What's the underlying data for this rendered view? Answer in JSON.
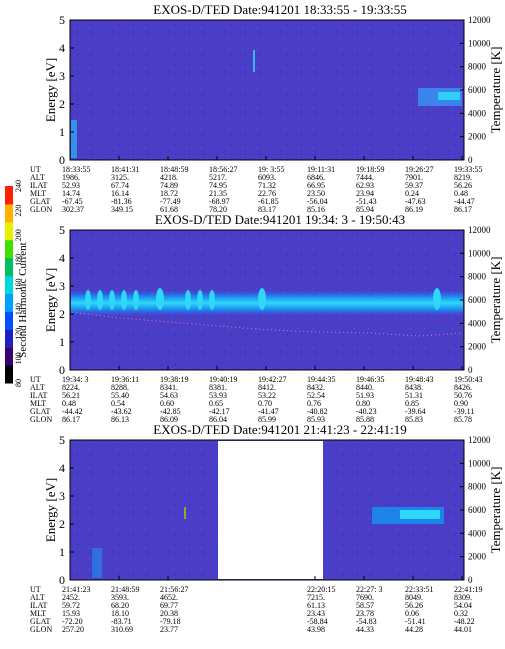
{
  "chart_data": [
    {
      "type": "heatmap",
      "title": "EXOS-D/TED   Date:941201  18:33:55 - 19:33:55",
      "ylabel": "Energy [eV]",
      "y2label": "Temperature [K]",
      "ylim": [
        0,
        5
      ],
      "y2lim": [
        0,
        12000
      ],
      "yticks": [
        "0",
        "1",
        "2",
        "3",
        "4",
        "5"
      ],
      "y2ticks": [
        "0",
        "2000",
        "4000",
        "6000",
        "8000",
        "10000",
        "12000"
      ],
      "gap": null,
      "orbit": {
        "labels": [
          "UT",
          "ALT",
          "ILAT",
          "MLT",
          "GLAT",
          "GLON"
        ],
        "columns": [
          [
            "18:33:55",
            "1986.",
            "52.93",
            "14.74",
            "-67.45",
            "302.37"
          ],
          [
            "18:41:31",
            "3125.",
            "67.74",
            "16.14",
            "-81.36",
            "349.15"
          ],
          [
            "18:48:59",
            "4218.",
            "74.89",
            "18.72",
            "-77.49",
            "61.68"
          ],
          [
            "18:56:27",
            "5217.",
            "74.95",
            "21.35",
            "-68.97",
            "78.20"
          ],
          [
            "19: 3:55",
            "6093.",
            "71.32",
            "22.76",
            "-61.85",
            "83.17"
          ],
          [
            "19:11:31",
            "6846.",
            "66.95",
            "23.50",
            "-56.04",
            "85.16"
          ],
          [
            "19:18:59",
            "7444.",
            "62.93",
            "23.94",
            "-51.43",
            "85.94"
          ],
          [
            "19:26:27",
            "7901.",
            "59.37",
            "0.24",
            "-47.63",
            "86.19"
          ],
          [
            "19:33:55",
            "8219.",
            "56.26",
            "0.48",
            "-44.47",
            "86.17"
          ]
        ]
      }
    },
    {
      "type": "heatmap",
      "title": "EXOS-D/TED   Date:941201  19:34: 3 - 19:50:43",
      "ylabel": "Energy [eV]",
      "y2label": "Temperature [K]",
      "ylim": [
        0,
        5
      ],
      "y2lim": [
        0,
        12000
      ],
      "yticks": [
        "0",
        "1",
        "2",
        "3",
        "4",
        "5"
      ],
      "y2ticks": [
        "0",
        "2000",
        "4000",
        "6000",
        "8000",
        "10000",
        "12000"
      ],
      "gap": null,
      "orbit": {
        "labels": [
          "UT",
          "ALT",
          "ILAT",
          "MLT",
          "GLAT",
          "GLON"
        ],
        "columns": [
          [
            "19:34: 3",
            "8224.",
            "56.21",
            "0.48",
            "-44.42",
            "86.17"
          ],
          [
            "19:36:11",
            "8288.",
            "55.40",
            "0.54",
            "-43.62",
            "86.13"
          ],
          [
            "19:38:19",
            "8341.",
            "54.63",
            "0.60",
            "-42.85",
            "86.09"
          ],
          [
            "19:40:19",
            "8381.",
            "53.93",
            "0.65",
            "-42.17",
            "86.04"
          ],
          [
            "19:42:27",
            "8412.",
            "53.22",
            "0.70",
            "-41.47",
            "85.99"
          ],
          [
            "19:44:35",
            "8432.",
            "52.54",
            "0.76",
            "-40.82",
            "85.93"
          ],
          [
            "19:46:35",
            "8440.",
            "51.93",
            "0.80",
            "-40.23",
            "85.88"
          ],
          [
            "19:48:43",
            "8438.",
            "51.31",
            "0.85",
            "-39.64",
            "85.83"
          ],
          [
            "19:50:43",
            "8426.",
            "50.76",
            "0.90",
            "-39.11",
            "85.78"
          ]
        ]
      }
    },
    {
      "type": "heatmap",
      "title": "EXOS-D/TED   Date:941201  21:41:23 - 22:41:19",
      "ylabel": "Energy [eV]",
      "y2label": "Temperature [K]",
      "ylim": [
        0,
        5
      ],
      "y2lim": [
        0,
        12000
      ],
      "yticks": [
        "0",
        "1",
        "2",
        "3",
        "4",
        "5"
      ],
      "y2ticks": [
        "0",
        "2000",
        "4000",
        "6000",
        "8000",
        "10000",
        "12000"
      ],
      "gap": [
        3,
        5
      ],
      "orbit": {
        "labels": [
          "UT",
          "ALT",
          "ILAT",
          "MLT",
          "GLAT",
          "GLON"
        ],
        "columns": [
          [
            "21:41:23",
            "2452.",
            "59.72",
            "15.93",
            "-72.20",
            "257.20"
          ],
          [
            "21:48:59",
            "3593.",
            "68.20",
            "18.10",
            "-83.71",
            "310.69"
          ],
          [
            "21:56:27",
            "4652.",
            "69.77",
            "20.38",
            "-79.18",
            "23.77"
          ],
          [
            "",
            "",
            "",
            "",
            "",
            ""
          ],
          [
            "",
            "",
            "",
            "",
            "",
            ""
          ],
          [
            "22:20:15",
            "7215.",
            "61.13",
            "23.43",
            "-58.84",
            "43.98"
          ],
          [
            "22:27: 3",
            "7690.",
            "58.57",
            "23.78",
            "-54.83",
            "44.33"
          ],
          [
            "22:33:51",
            "8049.",
            "56.26",
            "0.06",
            "-51.41",
            "44.28"
          ],
          [
            "22:41:19",
            "8309.",
            "54.04",
            "0.32",
            "-48.22",
            "44.01"
          ]
        ]
      }
    }
  ],
  "colorbar": {
    "label": "Second Harmonic Current",
    "ticks": [
      "80",
      "100",
      "120",
      "140",
      "160",
      "180",
      "200",
      "220",
      "240"
    ],
    "colors": [
      "#000000",
      "#3a0070",
      "#2020c0",
      "#0050ff",
      "#00a0ff",
      "#00d8e0",
      "#00c060",
      "#40e000",
      "#e8f000",
      "#ffb000",
      "#ff2000"
    ]
  },
  "colors": {
    "background_plasma": "#4b3cc8",
    "band_core": "#2fd3f5",
    "band_edge": "#1a8cf0",
    "cold_fill": "#ffffff"
  }
}
